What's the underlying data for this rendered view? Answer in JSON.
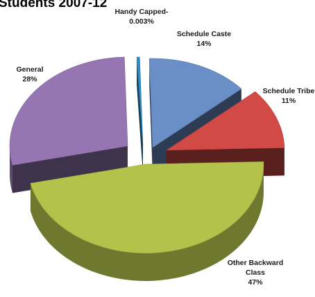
{
  "chart_data": {
    "type": "pie",
    "title": "Students 2007-12",
    "style": "3d-exploded",
    "slices": [
      {
        "label": "Handy Capped-",
        "value": 0.003,
        "display": "0.003%",
        "color": "#2f8fc9"
      },
      {
        "label": "Schedule Caste",
        "value": 14,
        "display": "14%",
        "color": "#6a8fc6"
      },
      {
        "label": "Schedule Tribe",
        "value": 11,
        "display": "11%",
        "color": "#d24a46"
      },
      {
        "label": "Other Backward Class",
        "value": 47,
        "display": "47%",
        "color": "#b2c24a"
      },
      {
        "label": "General",
        "value": 28,
        "display": "28%",
        "color": "#9576b2"
      }
    ]
  }
}
